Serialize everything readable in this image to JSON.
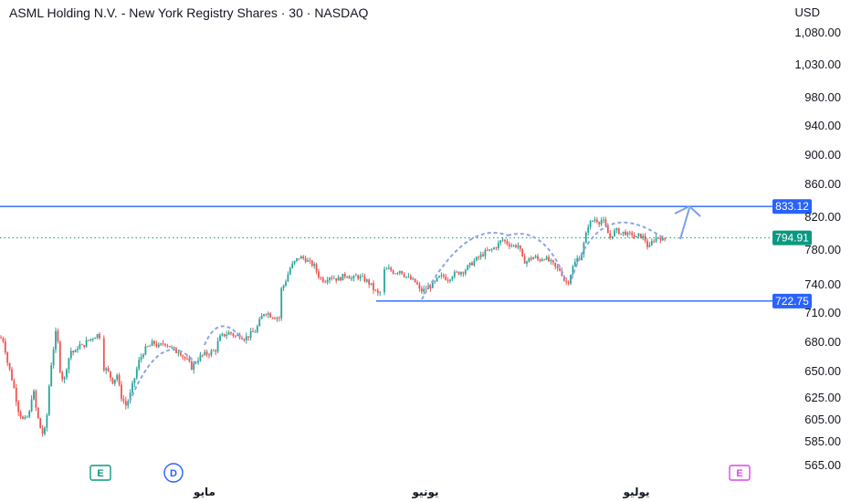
{
  "header": {
    "title": "ASML Holding N.V. - New York Registry Shares · 30 · NASDAQ",
    "currency": "USD"
  },
  "colors": {
    "up": "#26a69a",
    "down": "#ef5350",
    "level_line": "#2962ff",
    "last_price": "#089981",
    "arc": "#8fa3e8",
    "arrow": "#7b9fe8",
    "event_earnings": "#089981",
    "event_dividend": "#2962ff",
    "event_future": "#d946ef"
  },
  "events": [
    {
      "label": "E",
      "type": "earnings"
    },
    {
      "label": "D",
      "type": "dividend"
    },
    {
      "label": "E",
      "type": "earnings-upcoming"
    }
  ],
  "chart_data": {
    "type": "candlestick",
    "y_ticks": [
      "1,080.00",
      "1,030.00",
      "980.00",
      "940.00",
      "900.00",
      "860.00",
      "820.00",
      "780.00",
      "740.00",
      "710.00",
      "680.00",
      "650.00",
      "625.00",
      "605.00",
      "585.00",
      "565.00"
    ],
    "y_tick_values": [
      1080,
      1030,
      980,
      940,
      900,
      860,
      820,
      780,
      740,
      710,
      680,
      650,
      625,
      605,
      585,
      565
    ],
    "x_labels": [
      "مايو",
      "يونيو",
      "يوليو"
    ],
    "levels": [
      {
        "label": "833.12",
        "value": 833.12,
        "style": "solid"
      },
      {
        "label": "722.75",
        "value": 722.75,
        "style": "solid"
      }
    ],
    "last_price": {
      "label": "794.91",
      "value": 794.91,
      "style": "dotted"
    },
    "price_path": [
      [
        0,
        685
      ],
      [
        4,
        682
      ],
      [
        8,
        660
      ],
      [
        14,
        640
      ],
      [
        20,
        615
      ],
      [
        26,
        603
      ],
      [
        32,
        610
      ],
      [
        36,
        635
      ],
      [
        40,
        612
      ],
      [
        44,
        598
      ],
      [
        48,
        590
      ],
      [
        51,
        605
      ],
      [
        55,
        650
      ],
      [
        58,
        670
      ],
      [
        62,
        695
      ],
      [
        66,
        650
      ],
      [
        70,
        640
      ],
      [
        74,
        660
      ],
      [
        78,
        672
      ],
      [
        82,
        668
      ],
      [
        86,
        678
      ],
      [
        90,
        675
      ],
      [
        94,
        680
      ],
      [
        100,
        684
      ],
      [
        106,
        688
      ],
      [
        110,
        686
      ],
      [
        113,
        655
      ],
      [
        118,
        650
      ],
      [
        124,
        640
      ],
      [
        128,
        648
      ],
      [
        132,
        628
      ],
      [
        138,
        618
      ],
      [
        142,
        626
      ],
      [
        148,
        646
      ],
      [
        152,
        660
      ],
      [
        158,
        672
      ],
      [
        164,
        676
      ],
      [
        168,
        680
      ],
      [
        174,
        675
      ],
      [
        180,
        680
      ],
      [
        186,
        676
      ],
      [
        192,
        670
      ],
      [
        196,
        672
      ],
      [
        200,
        666
      ],
      [
        206,
        660
      ],
      [
        210,
        654
      ],
      [
        214,
        660
      ],
      [
        220,
        666
      ],
      [
        226,
        668
      ],
      [
        232,
        670
      ],
      [
        236,
        672
      ],
      [
        240,
        684
      ],
      [
        246,
        688
      ],
      [
        252,
        690
      ],
      [
        258,
        686
      ],
      [
        262,
        688
      ],
      [
        268,
        684
      ],
      [
        274,
        688
      ],
      [
        280,
        692
      ],
      [
        286,
        705
      ],
      [
        290,
        712
      ],
      [
        296,
        708
      ],
      [
        302,
        706
      ],
      [
        306,
        705
      ],
      [
        308,
        735
      ],
      [
        312,
        742
      ],
      [
        318,
        760
      ],
      [
        324,
        768
      ],
      [
        328,
        772
      ],
      [
        334,
        770
      ],
      [
        338,
        766
      ],
      [
        344,
        762
      ],
      [
        350,
        748
      ],
      [
        356,
        745
      ],
      [
        360,
        750
      ],
      [
        366,
        748
      ],
      [
        370,
        746
      ],
      [
        376,
        750
      ],
      [
        380,
        752
      ],
      [
        386,
        746
      ],
      [
        390,
        750
      ],
      [
        396,
        748
      ],
      [
        402,
        744
      ],
      [
        406,
        740
      ],
      [
        410,
        734
      ],
      [
        414,
        730
      ],
      [
        418,
        733
      ],
      [
        420,
        756
      ],
      [
        426,
        758
      ],
      [
        432,
        754
      ],
      [
        438,
        757
      ],
      [
        444,
        750
      ],
      [
        450,
        746
      ],
      [
        456,
        742
      ],
      [
        460,
        733
      ],
      [
        464,
        734
      ],
      [
        470,
        738
      ],
      [
        476,
        742
      ],
      [
        480,
        748
      ],
      [
        486,
        750
      ],
      [
        490,
        746
      ],
      [
        496,
        752
      ],
      [
        502,
        754
      ],
      [
        508,
        756
      ],
      [
        514,
        762
      ],
      [
        520,
        768
      ],
      [
        526,
        773
      ],
      [
        532,
        778
      ],
      [
        538,
        780
      ],
      [
        544,
        785
      ],
      [
        550,
        793
      ],
      [
        556,
        788
      ],
      [
        562,
        785
      ],
      [
        568,
        786
      ],
      [
        572,
        770
      ],
      [
        576,
        766
      ],
      [
        580,
        770
      ],
      [
        586,
        772
      ],
      [
        590,
        768
      ],
      [
        596,
        772
      ],
      [
        600,
        768
      ],
      [
        604,
        765
      ],
      [
        610,
        758
      ],
      [
        614,
        757
      ],
      [
        618,
        745
      ],
      [
        622,
        742
      ],
      [
        624,
        750
      ],
      [
        628,
        762
      ],
      [
        632,
        770
      ],
      [
        636,
        772
      ],
      [
        640,
        790
      ],
      [
        644,
        810
      ],
      [
        648,
        815
      ],
      [
        652,
        818
      ],
      [
        656,
        814
      ],
      [
        660,
        818
      ],
      [
        664,
        805
      ],
      [
        668,
        795
      ],
      [
        672,
        802
      ],
      [
        676,
        804
      ],
      [
        680,
        800
      ],
      [
        684,
        802
      ],
      [
        688,
        798
      ],
      [
        692,
        800
      ],
      [
        696,
        794
      ],
      [
        700,
        798
      ],
      [
        704,
        796
      ],
      [
        708,
        790
      ],
      [
        710,
        780
      ],
      [
        714,
        790
      ],
      [
        718,
        795
      ],
      [
        722,
        796
      ],
      [
        726,
        792
      ],
      [
        730,
        794
      ]
    ],
    "overlays": {
      "arcs": 5,
      "target_arrow": true
    }
  }
}
